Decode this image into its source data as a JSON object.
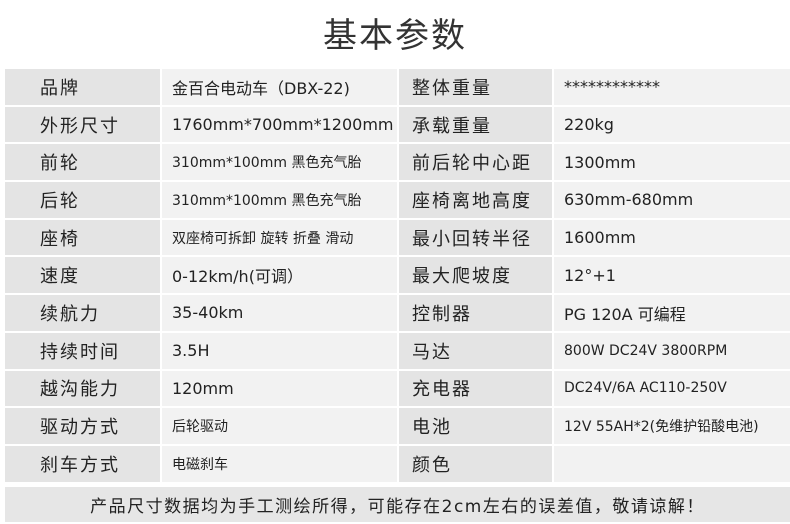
{
  "title": "基本参数",
  "rows": [
    {
      "l1": "品牌",
      "v1": "金百合电动车（DBX-22)",
      "l2": "整体重量",
      "v2": "************"
    },
    {
      "l1": "外形尺寸",
      "v1": "1760mm*700mm*1200mm",
      "l2": "承载重量",
      "v2": "220kg"
    },
    {
      "l1": "前轮",
      "v1": "310mm*100mm 黑色充气胎",
      "l2": "前后轮中心距",
      "v2": "1300mm"
    },
    {
      "l1": "后轮",
      "v1": "310mm*100mm 黑色充气胎",
      "l2": "座椅离地高度",
      "v2": "630mm-680mm"
    },
    {
      "l1": "座椅",
      "v1": "双座椅可拆卸 旋转 折叠 滑动",
      "l2": "最小回转半径",
      "v2": "1600mm"
    },
    {
      "l1": "速度",
      "v1": "0-12km/h(可调）",
      "l2": "最大爬坡度",
      "v2": "12°+1"
    },
    {
      "l1": "续航力",
      "v1": "35-40km",
      "l2": "控制器",
      "v2": "PG 120A 可编程"
    },
    {
      "l1": "持续时间",
      "v1": "3.5H",
      "l2": "马达",
      "v2": "800W DC24V  3800RPM"
    },
    {
      "l1": "越沟能力",
      "v1": "120mm",
      "l2": "充电器",
      "v2": "DC24V/6A  AC110-250V"
    },
    {
      "l1": "驱动方式",
      "v1": "后轮驱动",
      "l2": "电池",
      "v2": "12V 55AH*2(免维护铅酸电池)"
    },
    {
      "l1": "刹车方式",
      "v1": "电磁刹车",
      "l2": "颜色",
      "v2": ""
    }
  ],
  "footer": "产品尺寸数据均为手工测绘所得，可能存在2cm左右的误差值，敬请谅解！"
}
